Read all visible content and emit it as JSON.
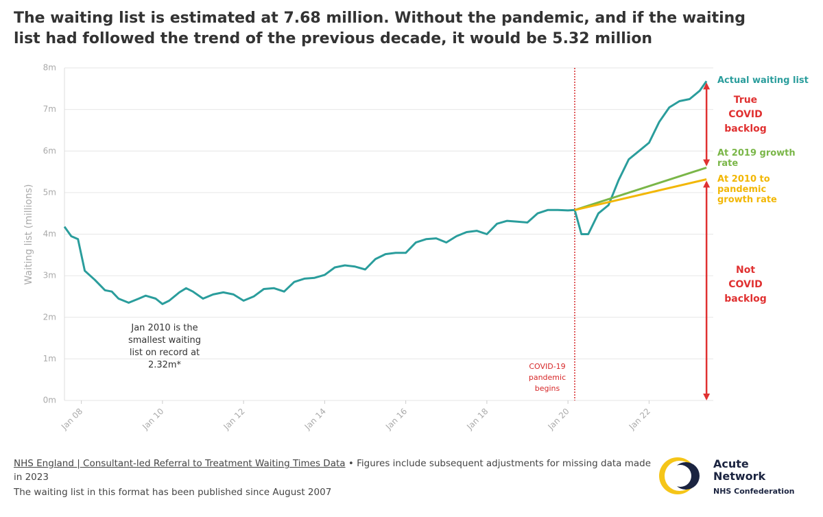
{
  "chart_data": {
    "type": "line",
    "title": "The waiting list is estimated at 7.68 million. Without the pandemic, and if the waiting list had followed the trend of the previous decade, it would be 5.32 million",
    "ylabel": "Waiting list (millions)",
    "xlim": [
      "2007-08",
      "2023-08"
    ],
    "xticks": [
      {
        "value": "2008-01",
        "label": "Jan 08"
      },
      {
        "value": "2010-01",
        "label": "Jan 10"
      },
      {
        "value": "2012-01",
        "label": "Jan 12"
      },
      {
        "value": "2014-01",
        "label": "Jan 14"
      },
      {
        "value": "2016-01",
        "label": "Jan 16"
      },
      {
        "value": "2018-01",
        "label": "Jan 18"
      },
      {
        "value": "2020-01",
        "label": "Jan 20"
      },
      {
        "value": "2022-01",
        "label": "Jan 22"
      }
    ],
    "ylim": [
      0,
      8
    ],
    "yticks": [
      {
        "value": 0,
        "label": "0m"
      },
      {
        "value": 1,
        "label": "1m"
      },
      {
        "value": 2,
        "label": "2m"
      },
      {
        "value": 3,
        "label": "3m"
      },
      {
        "value": 4,
        "label": "4m"
      },
      {
        "value": 5,
        "label": "5m"
      },
      {
        "value": 6,
        "label": "6m"
      },
      {
        "value": 7,
        "label": "7m"
      },
      {
        "value": 8,
        "label": "8m"
      }
    ],
    "grid": true,
    "series": [
      {
        "name": "Actual waiting list",
        "color": "#2a9d9c",
        "x": [
          "2007-08",
          "2007-10",
          "2007-12",
          "2008-02",
          "2008-05",
          "2008-08",
          "2008-10",
          "2008-12",
          "2009-03",
          "2009-06",
          "2009-08",
          "2009-11",
          "2010-01",
          "2010-03",
          "2010-06",
          "2010-08",
          "2010-10",
          "2011-01",
          "2011-04",
          "2011-07",
          "2011-10",
          "2012-01",
          "2012-04",
          "2012-07",
          "2012-10",
          "2013-01",
          "2013-04",
          "2013-07",
          "2013-10",
          "2014-01",
          "2014-04",
          "2014-07",
          "2014-10",
          "2015-01",
          "2015-04",
          "2015-07",
          "2015-10",
          "2016-01",
          "2016-04",
          "2016-07",
          "2016-10",
          "2017-01",
          "2017-04",
          "2017-07",
          "2017-10",
          "2018-01",
          "2018-04",
          "2018-07",
          "2018-10",
          "2019-01",
          "2019-04",
          "2019-07",
          "2019-10",
          "2020-01",
          "2020-03",
          "2020-05",
          "2020-07",
          "2020-10",
          "2021-01",
          "2021-04",
          "2021-07",
          "2021-10",
          "2022-01",
          "2022-04",
          "2022-07",
          "2022-10",
          "2023-01",
          "2023-04",
          "2023-06"
        ],
        "values": [
          4.18,
          3.95,
          3.88,
          3.12,
          2.9,
          2.65,
          2.62,
          2.45,
          2.35,
          2.45,
          2.52,
          2.45,
          2.32,
          2.4,
          2.6,
          2.7,
          2.62,
          2.45,
          2.55,
          2.6,
          2.55,
          2.4,
          2.5,
          2.68,
          2.7,
          2.62,
          2.85,
          2.93,
          2.95,
          3.02,
          3.2,
          3.25,
          3.22,
          3.15,
          3.4,
          3.52,
          3.55,
          3.55,
          3.8,
          3.88,
          3.9,
          3.8,
          3.95,
          4.05,
          4.08,
          4.0,
          4.25,
          4.32,
          4.3,
          4.28,
          4.5,
          4.58,
          4.58,
          4.57,
          4.58,
          4.0,
          4.0,
          4.5,
          4.7,
          5.3,
          5.8,
          6.0,
          6.2,
          6.7,
          7.05,
          7.2,
          7.25,
          7.45,
          7.68
        ]
      },
      {
        "name": "At 2019 growth rate",
        "color": "#7ab648",
        "x": [
          "2020-03",
          "2023-06"
        ],
        "values": [
          4.58,
          5.6
        ]
      },
      {
        "name": "At 2010 to pandemic growth rate",
        "color": "#f2b705",
        "x": [
          "2020-03",
          "2023-06"
        ],
        "values": [
          4.58,
          5.32
        ]
      }
    ],
    "event": {
      "x": "2020-03",
      "label": "COVID-19 pandemic begins",
      "color": "#d62728"
    },
    "annotations": {
      "true_backlog": "True COVID backlog",
      "not_backlog": "Not COVID backlog",
      "color": "#e03131",
      "minimum": "Jan 2010 is the smallest waiting list on record at 2.32m*"
    },
    "footer": {
      "source": "NHS England | Consultant-led Referral to Treatment Waiting Times Data",
      "note": "• Figures include subsequent adjustments for missing data made in 2023",
      "note2": "The waiting list in this format has been published since August 2007"
    },
    "logo": {
      "line1": "Acute",
      "line2": "Network",
      "line3": "NHS Confederation"
    }
  }
}
